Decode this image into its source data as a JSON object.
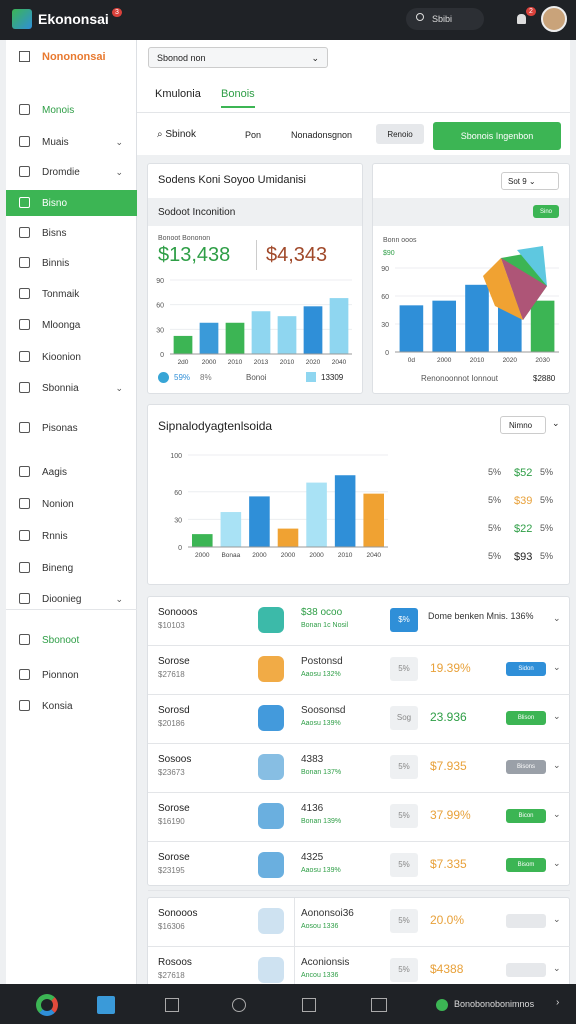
{
  "header": {
    "brand": "Ekononsai",
    "brand_badge": "3",
    "search": "Sbibi",
    "notifications": "2"
  },
  "sidebar": {
    "title": "Nonononsai",
    "items": [
      "Monois",
      "Muais",
      "Dromdie",
      "Bisno",
      "Bisns",
      "Binnis",
      "Tonmaik",
      "Mloonga",
      "Kioonion",
      "Sbonnia",
      "Pisonas",
      "Aagis",
      "Nonion",
      "Rnnis",
      "Bineng",
      "Dioonieg",
      "Sbonoot",
      "Pionnon",
      "Konsia"
    ],
    "active": 3
  },
  "toolbar": {
    "select": "Sbonod non",
    "tabs": [
      "Kmulonia",
      "Bonois"
    ]
  },
  "filters": {
    "search": "Sbinok",
    "items": [
      "Pon",
      "Nonadonsgnon"
    ],
    "chip": "Renoio",
    "button": "Sbonois Ingenbon"
  },
  "overview": {
    "title": "Sodens Koni Soyoo Umidanisi",
    "section": "Sodoot Inconition",
    "stat_label": "Bonoot Bononon",
    "stats": [
      "$13,438",
      "$4,343"
    ],
    "chart": {
      "type": "bar",
      "categories": [
        "2d0",
        "2000",
        "2010",
        "2013",
        "2010",
        "2020",
        "2040"
      ],
      "values": [
        22,
        38,
        38,
        52,
        46,
        58,
        68
      ],
      "colors": [
        "#3cb554",
        "#3a9ad9",
        "#3cb554",
        "#8fd6f0",
        "#8fd6f0",
        "#2f8fd8",
        "#8fd6f0"
      ],
      "ylim": [
        0,
        90
      ],
      "yticks": [
        0,
        30,
        60,
        90
      ]
    },
    "legend": [
      "59%",
      "8%",
      "Bonoi",
      "13309"
    ]
  },
  "side_card": {
    "select": "Sot 9",
    "button": "Sino",
    "label": "Bonn ooos",
    "sublabel": "$90",
    "chart": {
      "type": "bar",
      "categories": [
        "0d",
        "2000",
        "2010",
        "2020",
        "2030"
      ],
      "values": [
        50,
        55,
        72,
        62,
        55
      ],
      "colors": [
        "#2f8fd8",
        "#2f8fd8",
        "#2f8fd8",
        "#2f8fd8",
        "#3cb554"
      ],
      "ylim": [
        0,
        90
      ],
      "yticks": [
        0,
        30,
        60,
        90
      ]
    },
    "footer": [
      "Renonoonnot Ionnout",
      "$2880"
    ]
  },
  "trend": {
    "title": "Sipnalodyagtenlsoida",
    "select": "Nimno",
    "chart": {
      "type": "bar",
      "categories": [
        "2000",
        "Bonaa",
        "2000",
        "2000",
        "2000",
        "2010",
        "2040"
      ],
      "values": [
        14,
        38,
        55,
        20,
        70,
        78,
        58
      ],
      "colors": [
        "#3cb554",
        "#a9e2f5",
        "#2f8fd8",
        "#f0a232",
        "#a9e2f5",
        "#2f8fd8",
        "#f0a232"
      ],
      "ylim": [
        0,
        100
      ],
      "yticks": [
        0,
        30,
        60,
        100
      ]
    },
    "rows": [
      [
        "5%",
        "$52",
        "5%"
      ],
      [
        "5%",
        "$39",
        "5%"
      ],
      [
        "5%",
        "$22",
        "5%"
      ],
      [
        "5%",
        "$93",
        "5%"
      ]
    ],
    "row_colors": [
      "#2e9e46",
      "#e8a13a",
      "#2e9e46",
      "#222222"
    ]
  },
  "list": {
    "rows": [
      {
        "name": "Sonooos",
        "sub": "$10103",
        "title": "$38 ocoo",
        "subtitle": "Bonan 1c Nosil",
        "badge": "$%",
        "value": "Dome benken Mnis. 136%",
        "value_color": "#333333",
        "icon_color": "#27b3a0"
      },
      {
        "name": "Sorose",
        "sub": "$27618",
        "title": "Postonsd",
        "subtitle": "Aaosu 132%",
        "badge": "5%",
        "value": "19.39%",
        "value_color": "#e8a13a",
        "button": "Sidon",
        "button_color": "#2f8fd8",
        "icon_color": "#f0a232"
      },
      {
        "name": "Sorosd",
        "sub": "$20186",
        "title": "Soosonsd",
        "subtitle": "Aaosu 139%",
        "badge": "Sog",
        "value": "23.936",
        "value_color": "#2e9e46",
        "button": "Blison",
        "button_color": "#3cb554",
        "icon_color": "#2f8fd8"
      },
      {
        "name": "Sosoos",
        "sub": "$23673",
        "title": "4383",
        "subtitle": "Bonan 137%",
        "badge": "5%",
        "value": "$7.935",
        "value_color": "#e8a13a",
        "button": "Bisons",
        "button_color": "#9aa0a8",
        "icon_color": "#7ab7e0"
      },
      {
        "name": "Sorose",
        "sub": "$16190",
        "title": "4136",
        "subtitle": "Bonan 139%",
        "badge": "5%",
        "value": "37.99%",
        "value_color": "#e8a13a",
        "button": "Bicon",
        "button_color": "#3cb554",
        "icon_color": "#5aa6dc"
      },
      {
        "name": "Sorose",
        "sub": "$23195",
        "title": "4325",
        "subtitle": "Aaosu 139%",
        "badge": "5%",
        "value": "$7.335",
        "value_color": "#e8a13a",
        "button": "Bisom",
        "button_color": "#3cb554",
        "icon_color": "#5aa6dc"
      }
    ]
  },
  "list2": {
    "rows": [
      {
        "name": "Sonooos",
        "sub": "$16306",
        "title": "Aononsoi36",
        "subtitle": "Aosou 1336",
        "badge": "5%",
        "value": "20.0%",
        "value_color": "#e8a13a"
      },
      {
        "name": "Rosoos",
        "sub": "$27618",
        "title": "Aconionsis",
        "subtitle": "Ancou 1336",
        "badge": "5%",
        "value": "$4388",
        "value_color": "#e8a13a"
      }
    ]
  },
  "bottom_nav": {
    "label": "Bonobonobonimnos"
  }
}
